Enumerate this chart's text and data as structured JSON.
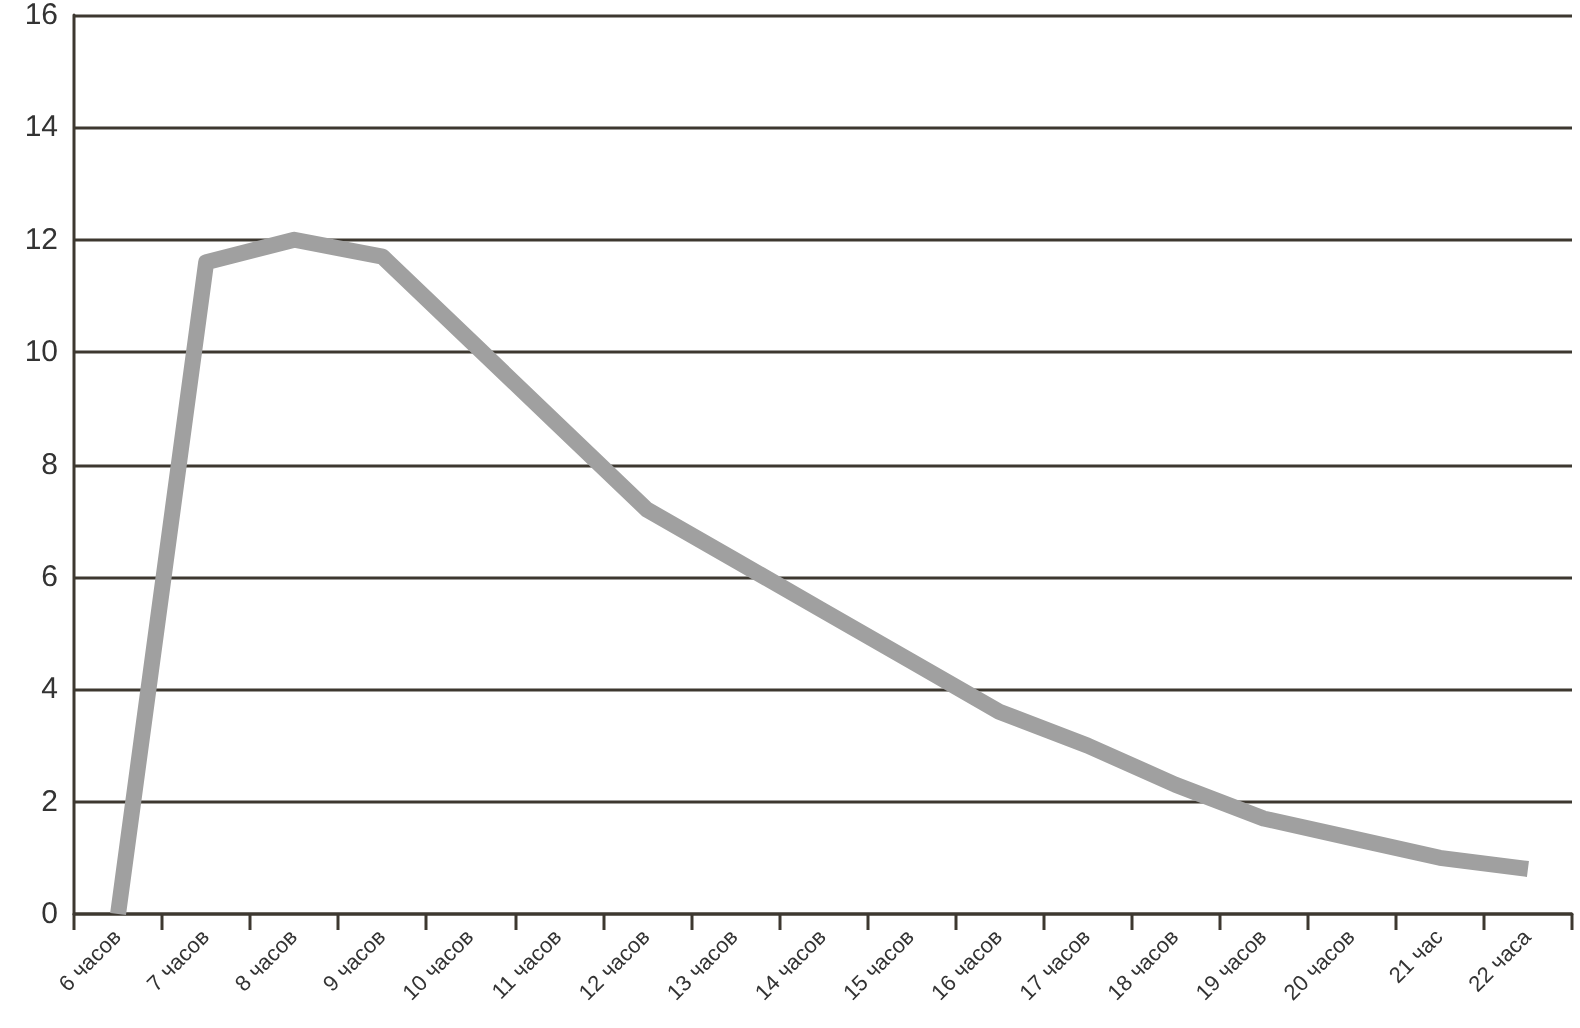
{
  "chart_data": {
    "type": "line",
    "categories": [
      "6 часов",
      "7 часов",
      "8 часов",
      "9 часов",
      "10 часов",
      "11 часов",
      "12 часов",
      "13 часов",
      "14 часов",
      "15 часов",
      "16 часов",
      "17 часов",
      "18 часов",
      "19 часов",
      "20 часов",
      "21 час",
      "22 часа"
    ],
    "series": [
      {
        "color": "#a0a0a0",
        "values": [
          0,
          11.6,
          12.0,
          11.7,
          10.2,
          8.7,
          7.2,
          6.3,
          5.4,
          4.5,
          3.6,
          3.0,
          2.3,
          1.7,
          1.35,
          1.0,
          0.8
        ]
      }
    ],
    "ylim": [
      0,
      16
    ],
    "yticks": [
      0,
      2,
      4,
      6,
      8,
      10,
      12,
      14,
      16
    ],
    "grid": "y",
    "marker": "none",
    "line_style": "solid"
  }
}
